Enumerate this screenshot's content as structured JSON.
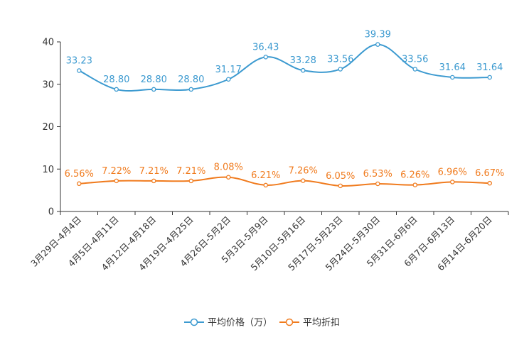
{
  "chart_data": {
    "type": "line",
    "title": "",
    "xlabel": "",
    "ylabel": "",
    "ylim": [
      0,
      40
    ],
    "yticks": [
      0,
      10,
      20,
      30,
      40
    ],
    "grid": false,
    "legend_position": "bottom-center",
    "categories": [
      "3月29日-4月4日",
      "4月5日-4月11日",
      "4月12日-4月18日",
      "4月19日-4月25日",
      "4月26日-5月2日",
      "5月3日-5月9日",
      "5月10日-5月16日",
      "5月17日-5月23日",
      "5月24日-5月30日",
      "5月31日-6月6日",
      "6月7日-6月13日",
      "6月14日-6月20日"
    ],
    "series": [
      {
        "name": "平均价格（万）",
        "color": "#3c9ad0",
        "values": [
          33.23,
          28.8,
          28.8,
          28.8,
          31.17,
          36.43,
          33.28,
          33.56,
          39.39,
          33.56,
          31.64,
          31.64
        ],
        "labels": [
          "33.23",
          "28.80",
          "28.80",
          "28.80",
          "31.17",
          "36.43",
          "33.28",
          "33.56",
          "39.39",
          "33.56",
          "31.64",
          "31.64"
        ]
      },
      {
        "name": "平均折扣",
        "color": "#f07b1e",
        "values": [
          6.56,
          7.22,
          7.21,
          7.21,
          8.08,
          6.21,
          7.26,
          6.05,
          6.53,
          6.26,
          6.96,
          6.67
        ],
        "labels": [
          "6.56%",
          "7.22%",
          "7.21%",
          "7.21%",
          "8.08%",
          "6.21%",
          "7.26%",
          "6.05%",
          "6.53%",
          "6.26%",
          "6.96%",
          "6.67%"
        ]
      }
    ]
  }
}
